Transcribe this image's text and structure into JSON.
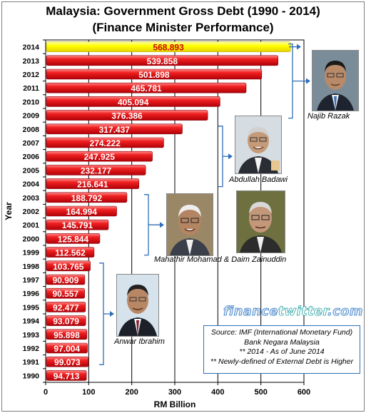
{
  "title": "Malaysia: Government Gross Debt (1990 - 2014)",
  "subtitle": "(Finance Minister Performance)",
  "chart_data": {
    "type": "bar",
    "orientation": "horizontal",
    "title": "Malaysia: Government Gross Debt (1990 - 2014)",
    "subtitle": "(Finance Minister Performance)",
    "xlabel": "RM Billion",
    "ylabel": "Year",
    "xlim": [
      0,
      600
    ],
    "x_ticks": [
      0,
      100,
      200,
      300,
      400,
      500,
      600
    ],
    "grid": true,
    "categories": [
      "2014",
      "2013",
      "2012",
      "2011",
      "2010",
      "2009",
      "2008",
      "2007",
      "2006",
      "2005",
      "2004",
      "2003",
      "2002",
      "2001",
      "2000",
      "1999",
      "1998",
      "1997",
      "1996",
      "1995",
      "1994",
      "1993",
      "1992",
      "1991",
      "1990"
    ],
    "values": [
      568.893,
      539.858,
      501.898,
      465.781,
      405.094,
      376.386,
      317.437,
      274.222,
      247.925,
      232.177,
      216.641,
      188.792,
      164.994,
      145.791,
      125.844,
      112.562,
      103.765,
      90.909,
      90.557,
      92.477,
      93.079,
      95.898,
      97.004,
      99.073,
      94.713
    ],
    "value_labels": [
      "568.893",
      "539.858",
      "501.898",
      "465.781",
      "405.094",
      "376.386",
      "317.437",
      "274.222",
      "247.925",
      "232.177",
      "216.641",
      "188.792",
      "164.994",
      "145.791",
      "125.844",
      "112.562",
      "103.765",
      "90.909",
      "90.557",
      "92.477",
      "93.079",
      "95.898",
      "97.004",
      "99.073",
      "94.713"
    ],
    "highlight_category": "2014",
    "colors": {
      "bar": "#e8151b",
      "highlight": "#ffff00",
      "highlight_text": "#cc0000",
      "label": "#ffffff",
      "bracket": "#2f6eb8"
    }
  },
  "annotations": {
    "najib": "Najib Razak",
    "abdullah": "Abdullah Badawi",
    "mahathir": "Mahathir Mohamad & Daim Zainuddin",
    "anwar": "Anwar Ibrahim"
  },
  "source": {
    "line1": "Source: IMF (International Monetary Fund)",
    "line2": "Bank Negara Malaysia",
    "line3": "** 2014 - As of June 2014",
    "line4": "**  Newly-defined of External Debt is Higher"
  },
  "brand": {
    "part1": "finance",
    "part2": "twitter",
    "part3": ".com"
  }
}
